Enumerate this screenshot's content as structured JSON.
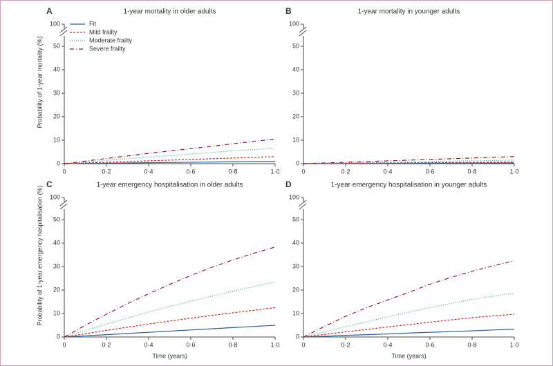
{
  "chart_data": [
    {
      "type": "line",
      "panel": "A",
      "title": "1-year mortality in older adults",
      "ylabel": "Probability of 1-year mortality (%)",
      "x": [
        0,
        0.1,
        0.2,
        0.3,
        0.4,
        0.5,
        0.6,
        0.7,
        0.8,
        0.9,
        1.0
      ],
      "xlim": [
        0,
        1
      ],
      "xticks": [
        {
          "value": 0,
          "label": "0"
        },
        {
          "value": 0.2,
          "label": "0·2"
        },
        {
          "value": 0.4,
          "label": "0·4"
        },
        {
          "value": 0.6,
          "label": "0·6"
        },
        {
          "value": 0.8,
          "label": "0·8"
        },
        {
          "value": 1.0,
          "label": "1·0"
        }
      ],
      "ylim": [
        0,
        100
      ],
      "yticks": [
        0,
        10,
        20,
        30,
        40,
        50,
        100
      ],
      "y_break": [
        55,
        95
      ],
      "legend": "upper left",
      "series": [
        {
          "name": "Fit",
          "color": "#2c5aa0",
          "dash": "none",
          "values": [
            0,
            0.1,
            0.2,
            0.3,
            0.4,
            0.5,
            0.6,
            0.7,
            0.8,
            0.9,
            1
          ]
        },
        {
          "name": "Mild frailty",
          "color": "#d62020",
          "dash": "3,2",
          "values": [
            0,
            0.3,
            0.6,
            0.9,
            1.2,
            1.5,
            1.8,
            2.1,
            2.4,
            2.7,
            3
          ]
        },
        {
          "name": "Moderate frailty",
          "color": "#3aa0a0",
          "dash": "1,2",
          "values": [
            0,
            0.7,
            1.4,
            2.1,
            2.8,
            3.4,
            4.1,
            4.8,
            5.5,
            6.0,
            6.5
          ]
        },
        {
          "name": "Severe frailty",
          "color": "#8b1a2a",
          "dash": "6,3,1,3",
          "values": [
            0,
            1.1,
            2.2,
            3.3,
            4.4,
            5.4,
            6.4,
            7.4,
            8.5,
            9.5,
            10.5
          ]
        }
      ]
    },
    {
      "type": "line",
      "panel": "B",
      "title": "1-year mortality in younger adults",
      "x": [
        0,
        0.1,
        0.2,
        0.3,
        0.4,
        0.5,
        0.6,
        0.7,
        0.8,
        0.9,
        1.0
      ],
      "xlim": [
        0,
        1
      ],
      "xticks": [
        {
          "value": 0,
          "label": "0"
        },
        {
          "value": 0.2,
          "label": "0·2"
        },
        {
          "value": 0.4,
          "label": "0·4"
        },
        {
          "value": 0.6,
          "label": "0·6"
        },
        {
          "value": 0.8,
          "label": "0·8"
        },
        {
          "value": 1.0,
          "label": "1·0"
        }
      ],
      "ylim": [
        0,
        100
      ],
      "yticks": [
        0,
        10,
        20,
        30,
        40,
        50,
        100
      ],
      "y_break": [
        55,
        95
      ],
      "series": [
        {
          "color": "#2c5aa0",
          "dash": "none",
          "values": [
            0,
            0.03,
            0.06,
            0.09,
            0.12,
            0.15,
            0.18,
            0.21,
            0.24,
            0.27,
            0.3
          ]
        },
        {
          "color": "#d62020",
          "dash": "3,2",
          "values": [
            0,
            0.07,
            0.14,
            0.21,
            0.28,
            0.35,
            0.42,
            0.49,
            0.56,
            0.63,
            0.7
          ]
        },
        {
          "color": "#3aa0a0",
          "dash": "1,2",
          "values": [
            0,
            0.15,
            0.3,
            0.45,
            0.6,
            0.75,
            0.9,
            1.05,
            1.2,
            1.35,
            1.5
          ]
        },
        {
          "color": "#8b1a2a",
          "dash": "6,3,1,3",
          "values": [
            0,
            0.3,
            0.6,
            0.9,
            1.2,
            1.5,
            1.8,
            2.1,
            2.4,
            2.7,
            3
          ]
        }
      ]
    },
    {
      "type": "line",
      "panel": "C",
      "title": "1-year emergency hospitalisation in older adults",
      "ylabel": "Probability of 1-year emergency hospitalisation (%)",
      "xlabel": "Time (years)",
      "x": [
        0,
        0.1,
        0.2,
        0.3,
        0.4,
        0.5,
        0.6,
        0.7,
        0.8,
        0.9,
        1.0
      ],
      "xlim": [
        0,
        1
      ],
      "xticks": [
        {
          "value": 0,
          "label": "0"
        },
        {
          "value": 0.2,
          "label": "0·2"
        },
        {
          "value": 0.4,
          "label": "0·4"
        },
        {
          "value": 0.6,
          "label": "0·6"
        },
        {
          "value": 0.8,
          "label": "0·8"
        },
        {
          "value": 1.0,
          "label": "1·0"
        }
      ],
      "ylim": [
        0,
        100
      ],
      "yticks": [
        0,
        10,
        20,
        30,
        40,
        50,
        100
      ],
      "y_break": [
        55,
        95
      ],
      "series": [
        {
          "color": "#2c5aa0",
          "dash": "none",
          "values": [
            0,
            0.5,
            1,
            1.5,
            2,
            2.5,
            3,
            3.5,
            4,
            4.5,
            5
          ]
        },
        {
          "color": "#d62020",
          "dash": "3,2",
          "values": [
            0,
            1.4,
            2.8,
            4.2,
            5.5,
            6.8,
            8.0,
            9.2,
            10.3,
            11.4,
            12.5
          ]
        },
        {
          "color": "#3aa0a0",
          "dash": "1,2",
          "values": [
            0,
            2.8,
            5.5,
            8.1,
            10.6,
            13,
            15.2,
            17.4,
            19.5,
            21.5,
            23.5
          ]
        },
        {
          "color": "#8b1a2a",
          "dash": "6,3,1,3",
          "values": [
            0,
            5,
            9.7,
            14.2,
            18.4,
            22.4,
            26.2,
            29.7,
            32.8,
            35.7,
            38.3
          ]
        }
      ]
    },
    {
      "type": "line",
      "panel": "D",
      "title": "1-year emergency hospitalisation in younger adults",
      "xlabel": "Time (years)",
      "x": [
        0,
        0.1,
        0.2,
        0.3,
        0.4,
        0.5,
        0.6,
        0.7,
        0.8,
        0.9,
        1.0
      ],
      "xlim": [
        0,
        1
      ],
      "xticks": [
        {
          "value": 0,
          "label": "0"
        },
        {
          "value": 0.2,
          "label": "0·2"
        },
        {
          "value": 0.4,
          "label": "0·4"
        },
        {
          "value": 0.6,
          "label": "0·6"
        },
        {
          "value": 0.8,
          "label": "0·8"
        },
        {
          "value": 1.0,
          "label": "1·0"
        }
      ],
      "ylim": [
        0,
        100
      ],
      "yticks": [
        0,
        10,
        20,
        30,
        40,
        50,
        100
      ],
      "y_break": [
        55,
        95
      ],
      "series": [
        {
          "color": "#2c5aa0",
          "dash": "none",
          "values": [
            0,
            0.3,
            0.7,
            1,
            1.3,
            1.7,
            2,
            2.3,
            2.6,
            3,
            3.3
          ]
        },
        {
          "color": "#d62020",
          "dash": "3,2",
          "values": [
            0,
            1.1,
            2.2,
            3.2,
            4.3,
            5.3,
            6.3,
            7.3,
            8.2,
            9,
            9.7
          ]
        },
        {
          "color": "#3aa0a0",
          "dash": "1,2",
          "values": [
            0,
            2.2,
            4.4,
            6.5,
            8.6,
            10.6,
            12.5,
            14.3,
            16,
            17.4,
            18.7
          ]
        },
        {
          "color": "#8b1a2a",
          "dash": "6,3,1,3",
          "values": [
            0,
            4.5,
            8.8,
            12.5,
            15.8,
            19,
            22.5,
            25.4,
            28,
            30.3,
            32.5
          ]
        }
      ]
    }
  ]
}
